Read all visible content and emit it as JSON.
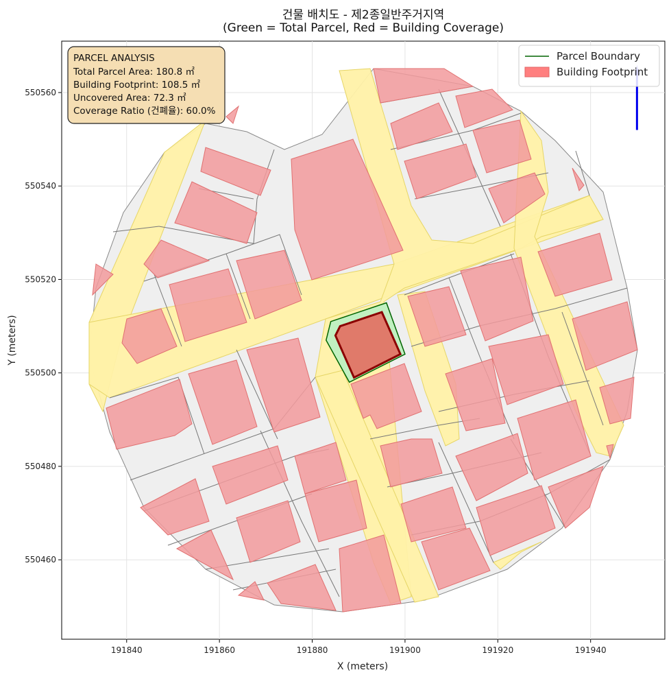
{
  "title": {
    "line1": "건물 배치도 - 제2종일반주거지역",
    "line2": "(Green = Total Parcel, Red = Building Coverage)"
  },
  "axes": {
    "xlabel": "X (meters)",
    "ylabel": "Y (meters)",
    "xlim": [
      191826,
      191956
    ],
    "ylim": [
      550443,
      550571
    ],
    "xticks": [
      191840,
      191860,
      191880,
      191900,
      191920,
      191940
    ],
    "yticks": [
      550460,
      550480,
      550500,
      550520,
      550540,
      550560
    ],
    "grid": true
  },
  "legend": {
    "position": "top-right",
    "items": [
      {
        "label": "Parcel Boundary",
        "color": "#006400",
        "kind": "line"
      },
      {
        "label": "Building Footprint",
        "color": "#ff7f7f",
        "kind": "patch"
      }
    ]
  },
  "info_box": {
    "heading": "PARCEL ANALYSIS",
    "lines": [
      "Total Parcel Area: 180.8 ㎡",
      "Building Footprint: 108.5 ㎡",
      "Uncovered Area: 72.3 ㎡",
      "Coverage Ratio (건폐율): 60.0%"
    ]
  },
  "colors": {
    "parcel_fill": "#c1f0c1",
    "parcel_edge": "#006400",
    "building_fill": "#e07a6a",
    "building_edge": "#8b0000",
    "context_building": "#f29a9c",
    "road": "#fff1a8",
    "context_lot": "#efefef",
    "north_arrow": "#0000ee"
  },
  "map": {
    "parcel": [
      [
        191884,
        550511
      ],
      [
        191896,
        550515
      ],
      [
        191900,
        550504
      ],
      [
        191888,
        550498
      ],
      [
        191883,
        550507
      ]
    ],
    "building": [
      [
        191886,
        550510
      ],
      [
        191895,
        550513
      ],
      [
        191899,
        550504
      ],
      [
        191889,
        550499
      ],
      [
        191885,
        550508
      ]
    ],
    "north_arrow": {
      "x": 191950,
      "y_base": 550552,
      "y_tip": 550565
    }
  }
}
